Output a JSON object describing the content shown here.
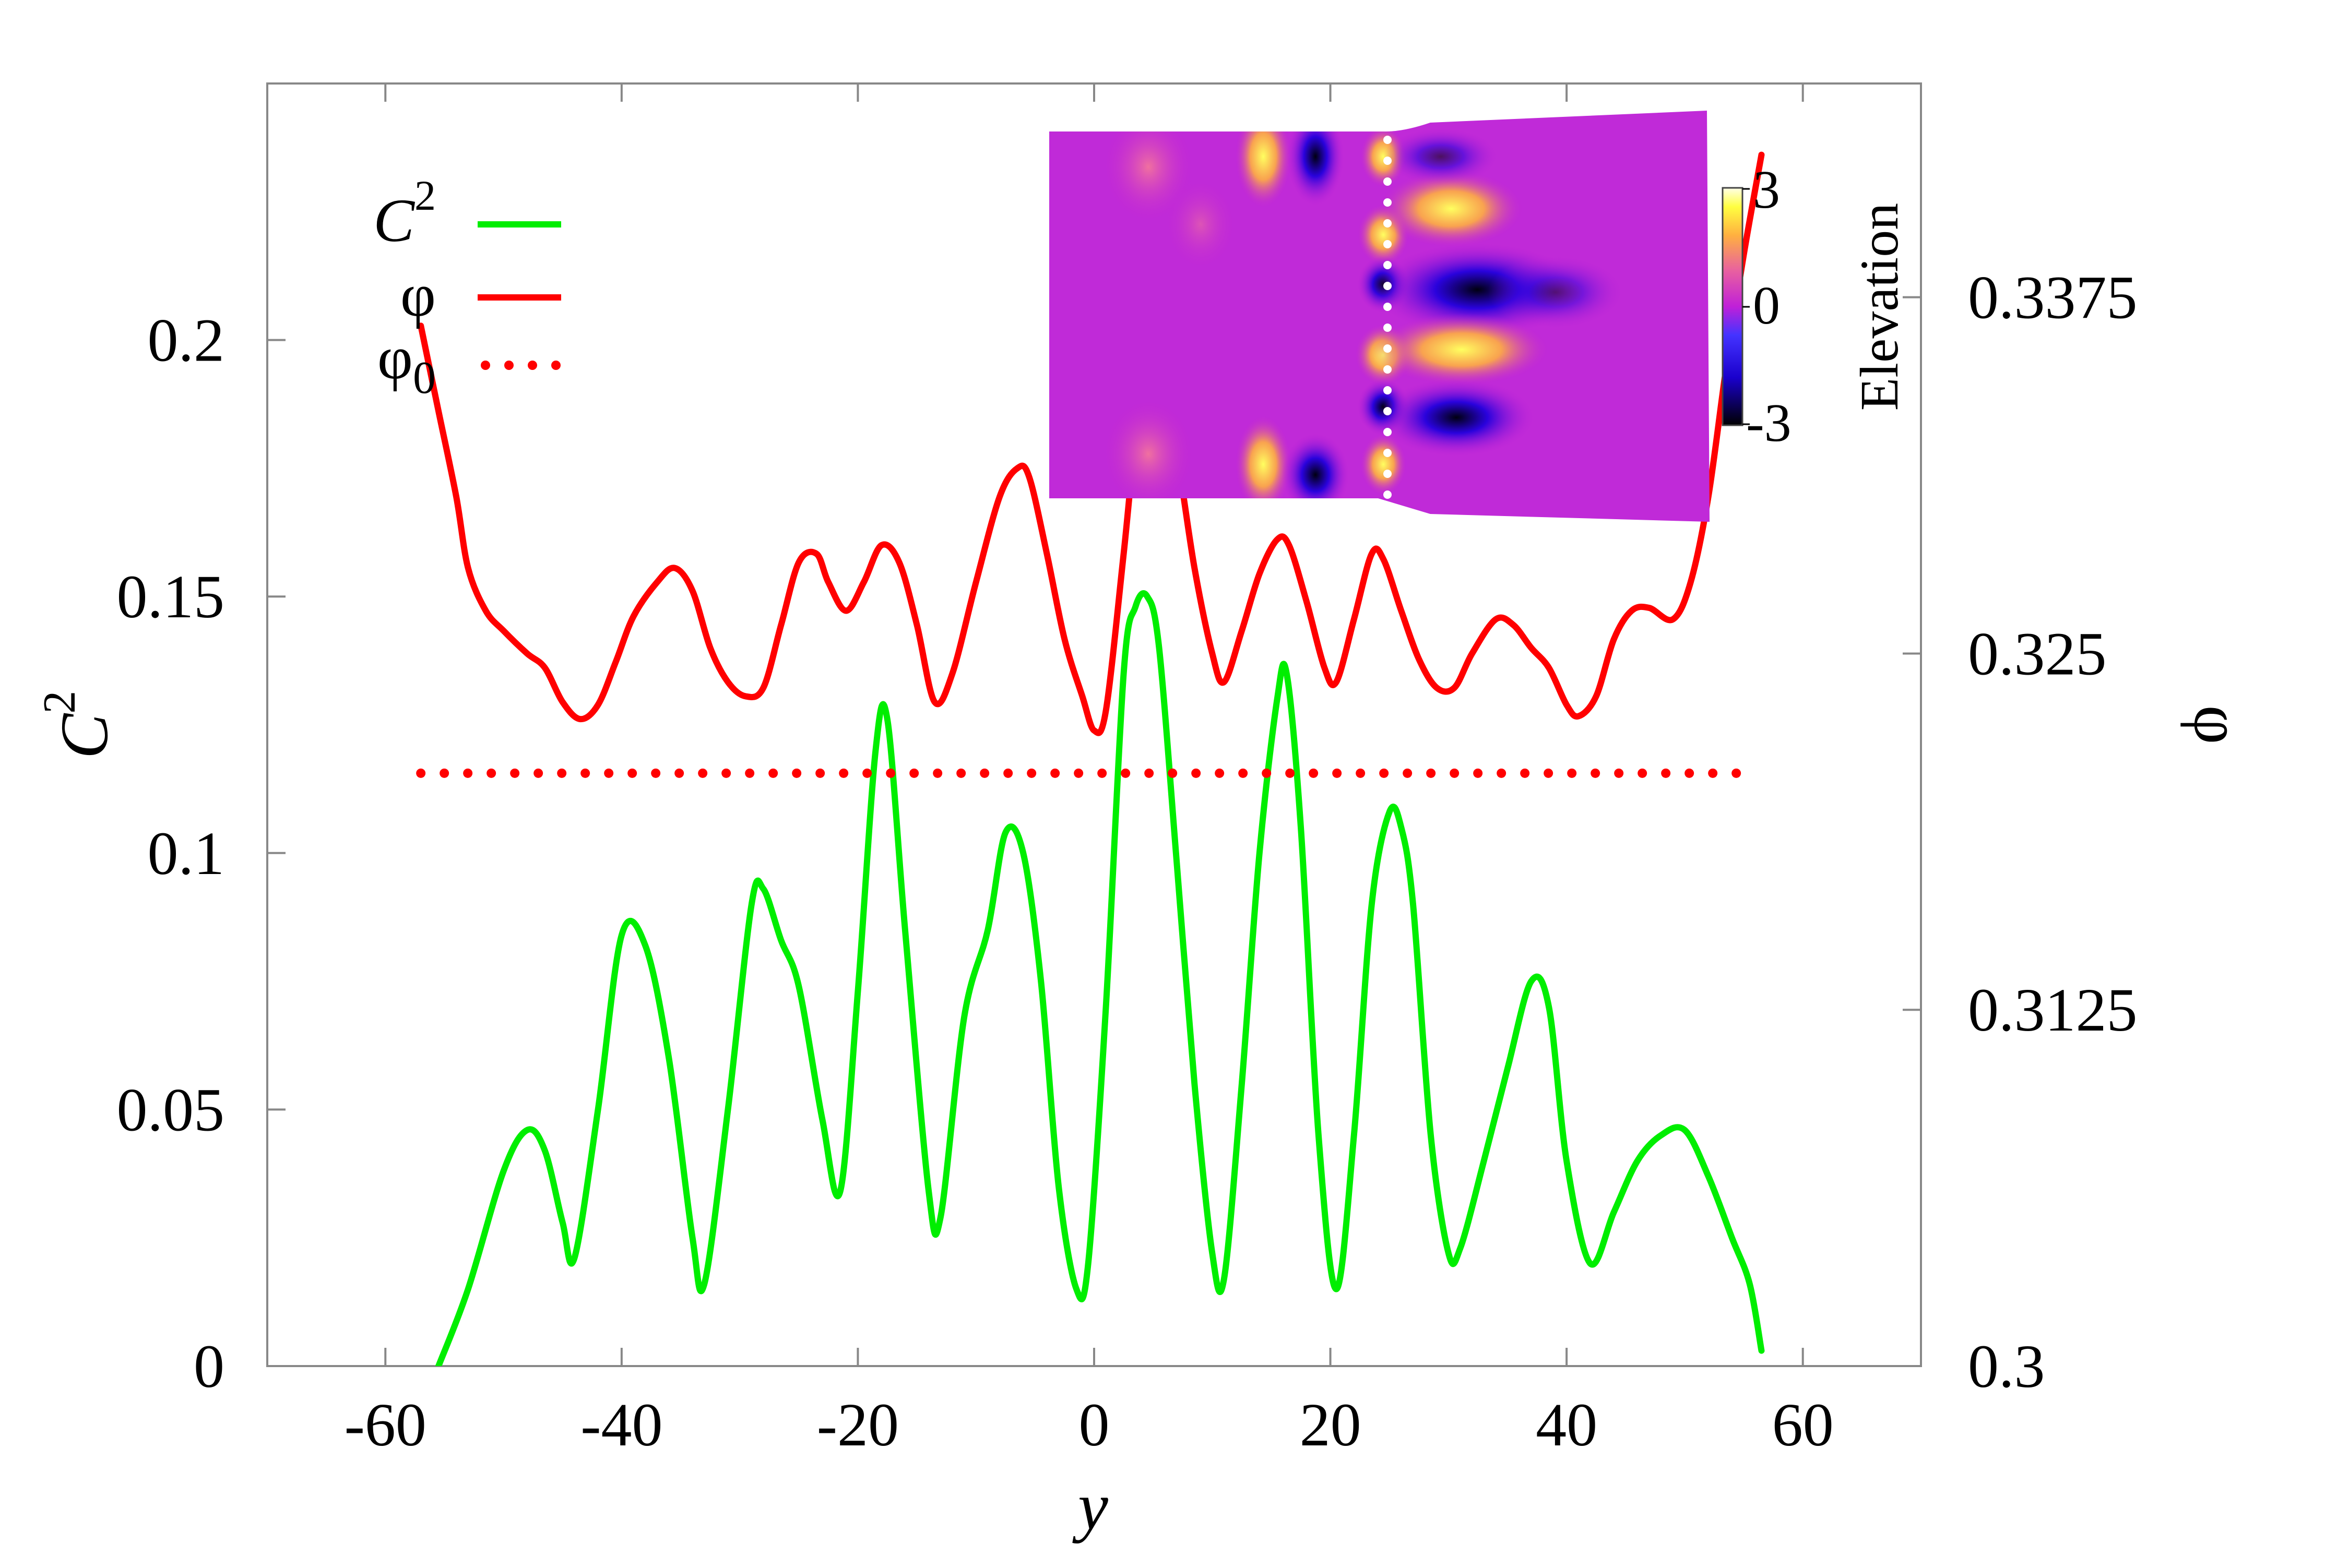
{
  "chart_data": {
    "type": "line",
    "xlabel": "y",
    "ylabel": "C",
    "ylabel_sup": "2",
    "y2label": "φ",
    "xlim": [
      -70,
      70
    ],
    "ylim": [
      0,
      0.25
    ],
    "y2lim": [
      0.3,
      0.345
    ],
    "x_ticks": [
      -60,
      -40,
      -20,
      0,
      20,
      40,
      60
    ],
    "x_tick_labels": [
      "-60",
      "-40",
      "-20",
      "0",
      "20",
      "40",
      "60"
    ],
    "y_ticks": [
      0,
      0.05,
      0.1,
      0.15,
      0.2
    ],
    "y_tick_labels": [
      "0",
      "0.05",
      "0.1",
      "0.15",
      "0.2"
    ],
    "y2_ticks": [
      0.3,
      0.3125,
      0.325,
      0.3375
    ],
    "y2_tick_labels": [
      "0.3",
      "0.3125",
      "0.325",
      "0.3375"
    ],
    "grid": false,
    "legend_position": "top-left",
    "series": [
      {
        "name": "C",
        "name_sup": "2",
        "axis": "left",
        "style": "solid",
        "color": "#00ee00",
        "x": [
          -55.5,
          -53,
          -50,
          -48,
          -46.5,
          -45,
          -44,
          -42,
          -40,
          -38,
          -36,
          -34,
          -33,
          -31,
          -29,
          -28,
          -26.5,
          -25,
          -23,
          -21.5,
          -20,
          -18.5,
          -17.5,
          -16,
          -14,
          -13,
          -11,
          -9,
          -7.5,
          -6,
          -4.5,
          -3,
          -1.5,
          -0.5,
          1,
          2.5,
          3.5,
          4.5,
          5.5,
          7,
          8.5,
          10,
          11,
          12.5,
          14,
          15.5,
          16.3,
          17.5,
          19,
          20.5,
          22,
          23.5,
          25,
          26,
          27,
          28.5,
          30,
          31,
          33,
          35,
          37,
          38.5,
          40,
          42,
          44,
          46,
          48,
          50,
          52,
          54,
          55.5,
          56.5
        ],
        "y": [
          0,
          0.015,
          0.038,
          0.046,
          0.042,
          0.028,
          0.021,
          0.05,
          0.084,
          0.082,
          0.06,
          0.025,
          0.016,
          0.05,
          0.09,
          0.093,
          0.083,
          0.074,
          0.048,
          0.034,
          0.073,
          0.12,
          0.126,
          0.085,
          0.034,
          0.029,
          0.068,
          0.085,
          0.104,
          0.1,
          0.075,
          0.035,
          0.015,
          0.02,
          0.07,
          0.135,
          0.148,
          0.15,
          0.14,
          0.098,
          0.055,
          0.022,
          0.017,
          0.055,
          0.1,
          0.13,
          0.135,
          0.105,
          0.045,
          0.015,
          0.045,
          0.09,
          0.108,
          0.105,
          0.09,
          0.045,
          0.022,
          0.023,
          0.04,
          0.058,
          0.075,
          0.07,
          0.04,
          0.02,
          0.03,
          0.04,
          0.045,
          0.046,
          0.037,
          0.025,
          0.016,
          0.003
        ]
      },
      {
        "name": "φ",
        "axis": "right",
        "style": "solid",
        "color": "#ff0000",
        "x": [
          -57,
          -55.5,
          -54,
          -53,
          -51.5,
          -50,
          -48,
          -46.5,
          -45,
          -43.5,
          -42,
          -40.5,
          -39,
          -37,
          -35.5,
          -34,
          -32.5,
          -31,
          -29.5,
          -28,
          -26.5,
          -25,
          -23.5,
          -22.5,
          -21,
          -19.5,
          -18,
          -16.5,
          -15,
          -13.5,
          -12,
          -10,
          -8,
          -6.5,
          -5.5,
          -4,
          -2.5,
          -1,
          0,
          1,
          2.5,
          3.5,
          4.5,
          5,
          5.5,
          7,
          8.5,
          10,
          11,
          12.5,
          14,
          15.5,
          16.5,
          18,
          19.5,
          20.5,
          22,
          23.5,
          24.5,
          26,
          27.5,
          29,
          30.5,
          32,
          34,
          35.5,
          37,
          38.5,
          40,
          41,
          42.5,
          44,
          45.5,
          47,
          49,
          50.5,
          52,
          53.5,
          55,
          56.5
        ],
        "y": [
          0.3365,
          0.3335,
          0.3305,
          0.328,
          0.3265,
          0.3258,
          0.325,
          0.3245,
          0.3233,
          0.3227,
          0.3232,
          0.3247,
          0.3263,
          0.3275,
          0.328,
          0.3272,
          0.3252,
          0.324,
          0.3235,
          0.3238,
          0.326,
          0.3282,
          0.3285,
          0.3275,
          0.3265,
          0.3275,
          0.3288,
          0.3282,
          0.326,
          0.3233,
          0.3243,
          0.3275,
          0.3305,
          0.3315,
          0.3312,
          0.3285,
          0.3255,
          0.3235,
          0.3223,
          0.323,
          0.3285,
          0.3325,
          0.3345,
          0.335,
          0.3348,
          0.332,
          0.328,
          0.325,
          0.324,
          0.3258,
          0.3278,
          0.329,
          0.3288,
          0.3268,
          0.3245,
          0.324,
          0.3262,
          0.3285,
          0.3283,
          0.3265,
          0.3248,
          0.3238,
          0.3238,
          0.325,
          0.3262,
          0.326,
          0.3252,
          0.3245,
          0.3232,
          0.3228,
          0.3235,
          0.3255,
          0.3265,
          0.3266,
          0.3262,
          0.3275,
          0.3305,
          0.335,
          0.339,
          0.3425
        ]
      },
      {
        "name": "φ",
        "name_sub": "0",
        "axis": "right",
        "style": "dotted",
        "color": "#ff0000",
        "x": [
          -57,
          56
        ],
        "y": [
          0.3208,
          0.3208
        ]
      }
    ],
    "inset": {
      "colorbar_label": "Elevation",
      "colorbar_ticks": [
        "3",
        "0",
        "-3"
      ],
      "colormap": [
        "#000000",
        "#1a00cc",
        "#4433ff",
        "#c020d8",
        "#e860a0",
        "#ffb040",
        "#ffff40",
        "#ffffe8"
      ]
    }
  }
}
